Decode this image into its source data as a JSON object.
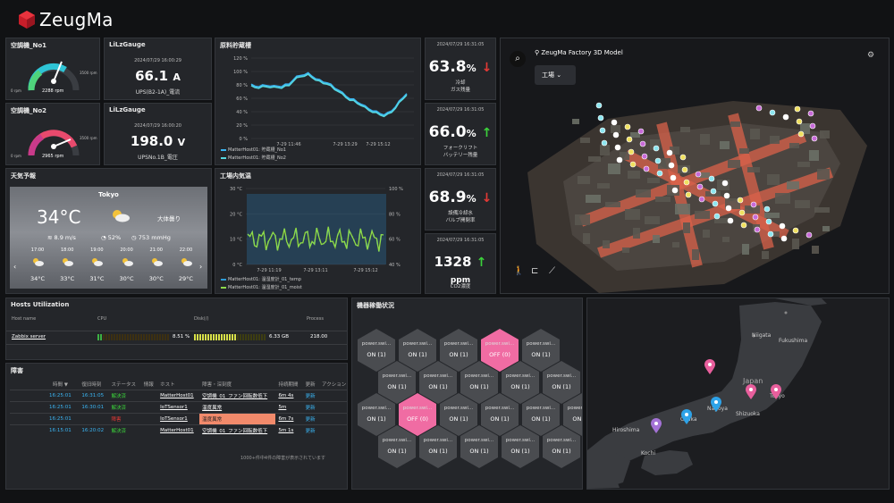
{
  "brand": {
    "name": "ZeugMa"
  },
  "gauge1": {
    "title": "空調機_No1",
    "value": "2288 rpm",
    "min_label": "0 rpm",
    "max_label": "3500 rpm",
    "accent": "#2ec4d6",
    "fraction": 0.65
  },
  "gauge2": {
    "title": "空調機_No2",
    "value": "2965 rpm",
    "min_label": "0 rpm",
    "max_label": "3500 rpm",
    "accent": "#e84a6d",
    "fraction": 0.85
  },
  "lilz1": {
    "title": "LiLzGauge",
    "ts": "2024/07/29 16:00:29",
    "value": "66.1",
    "unit": "A",
    "label": "UPS(B2-1A)_電流"
  },
  "lilz2": {
    "title": "LiLzGauge",
    "ts": "2024/07/29 16:00:20",
    "value": "198.0",
    "unit": "V",
    "label": "UPSNo.1B_電圧"
  },
  "silo": {
    "title": "原料貯蔵槽",
    "yticks": [
      "120 %",
      "100 %",
      "80 %",
      "60 %",
      "40 %",
      "20 %",
      "0 %"
    ],
    "xticks": [
      "7-29 11:46",
      "7-29 13:29",
      "7-29 15:12"
    ],
    "legend": [
      "MatterHost01: 貯蔵槽_No1",
      "MatterHost01: 貯蔵槽_No2"
    ]
  },
  "env": {
    "title": "工場内気温",
    "yticks_left": [
      "30 °C",
      "20 °C",
      "10 °C",
      "0 °C"
    ],
    "yticks_right": [
      "100 %",
      "80 %",
      "60 %",
      "40 %"
    ],
    "xticks": [
      "7-29 11:19",
      "7-29 13:11",
      "7-29 15:12"
    ],
    "legend": [
      "MatterHost01: 温湿度計_01_temp",
      "MatterHost01: 温湿度計_01_moist"
    ]
  },
  "stats": [
    {
      "ts": "2024/07/29 16:31:05",
      "value": "63.8",
      "unit": "%",
      "trend": "down",
      "label1": "冷却",
      "label2": "ガス残量"
    },
    {
      "ts": "2024/07/29 16:31:05",
      "value": "66.0",
      "unit": "%",
      "trend": "up",
      "label1": "フォークリフト",
      "label2": "バッテリー残量"
    },
    {
      "ts": "2024/07/29 16:31:05",
      "value": "68.9",
      "unit": "%",
      "trend": "down",
      "label1": "設備冷却水",
      "label2": "バルブ開閉率"
    },
    {
      "ts": "2024/07/29 16:31:05",
      "value": "1328",
      "unit": "ppm",
      "trend": "up",
      "label1": "CO2濃度",
      "label2": ""
    }
  ],
  "weather": {
    "title": "天気予報",
    "city": "Tokyo",
    "temp": "34°C",
    "desc": "大体曇り",
    "wind": "8.9 m/s",
    "humidity": "52%",
    "pressure": "753 mmHg",
    "hours": [
      {
        "t": "17:00",
        "temp": "34°C"
      },
      {
        "t": "18:00",
        "temp": "33°C"
      },
      {
        "t": "19:00",
        "temp": "31°C"
      },
      {
        "t": "20:00",
        "temp": "30°C"
      },
      {
        "t": "21:00",
        "temp": "30°C"
      },
      {
        "t": "22:00",
        "temp": "29°C"
      }
    ]
  },
  "factory": {
    "title": "ZeugMa Factory 3D Model",
    "dropdown": "工場"
  },
  "hosts": {
    "title": "Hosts Utilization",
    "headers": [
      "Host name",
      "CPU",
      "Disk(/)",
      "Process"
    ],
    "row": {
      "name": "Zabbix server",
      "cpu": "8.51 %",
      "disk": "6.33 GB",
      "proc": "218.00",
      "cpu_fraction": 0.08,
      "disk_fraction": 0.6
    }
  },
  "alerts": {
    "title": "障害",
    "headers": [
      "時間 ▼",
      "復旧時刻",
      "ステータス",
      "情報",
      "ホスト",
      "障害・深刻度",
      "持続期間",
      "更新",
      "アクション"
    ],
    "rows": [
      {
        "time": "16:25:01",
        "rec": "16:31:05",
        "status": "解決済",
        "host": "MatterHost01",
        "problem": "空調機_01_ファン回転数低下",
        "dur": "6m 4s",
        "upd": "更新"
      },
      {
        "time": "16:25:01",
        "rec": "16:30:01",
        "status": "解決済",
        "host": "IoTSensor1",
        "problem": "温度異常",
        "dur": "5m",
        "upd": "更新"
      },
      {
        "time": "16:25:01",
        "rec": "",
        "status": "障害",
        "host": "IoTSensor1",
        "problem": "温度異常",
        "dur": "6m 7s",
        "upd": "更新"
      },
      {
        "time": "16:15:01",
        "rec": "16:20:02",
        "status": "解決済",
        "host": "MatterHost01",
        "problem": "空調機_01_ファン回転数低下",
        "dur": "5m 1s",
        "upd": "更新"
      }
    ],
    "footer": "1000+件中4件の障害が表示されています"
  },
  "power": {
    "title": "機器稼働状況",
    "hexes": [
      {
        "name": "power.swi...",
        "state": "ON (1)"
      },
      {
        "name": "power.swi...",
        "state": "ON (1)"
      },
      {
        "name": "power.swi...",
        "state": "ON (1)"
      },
      {
        "name": "power.swi...",
        "state": "OFF (0)"
      },
      {
        "name": "power.swi...",
        "state": "ON (1)"
      },
      {
        "name": "power.swi...",
        "state": "ON (1)"
      },
      {
        "name": "power.swi...",
        "state": "ON (1)"
      },
      {
        "name": "power.swi...",
        "state": "ON (1)"
      },
      {
        "name": "power.swi...",
        "state": "ON (1)"
      },
      {
        "name": "power.swi...",
        "state": "ON (1)"
      },
      {
        "name": "power.swi...",
        "state": "ON (1)"
      },
      {
        "name": "power.swi...",
        "state": "ON (1)"
      },
      {
        "name": "power.swi...",
        "state": "OFF (0)"
      },
      {
        "name": "power.swi...",
        "state": "ON (1)"
      },
      {
        "name": "power.swi...",
        "state": "ON (1)"
      },
      {
        "name": "power.swi...",
        "state": "ON (1)"
      },
      {
        "name": "power.swi...",
        "state": "ON (1)"
      },
      {
        "name": "power.swi...",
        "state": "ON (1)"
      },
      {
        "name": "power.swi...",
        "state": "ON (1)"
      },
      {
        "name": "power.swi...",
        "state": "ON (1)"
      },
      {
        "name": "power.swi...",
        "state": "ON (1)"
      },
      {
        "name": "power.swi...",
        "state": "ON (1)"
      }
    ]
  },
  "map": {
    "labels": [
      "Niigata",
      "Fukushima",
      "Japan",
      "Nagoya",
      "Shizuoka",
      "Tokyo",
      "Osaka",
      "Hiroshima",
      "Kochi"
    ]
  }
}
